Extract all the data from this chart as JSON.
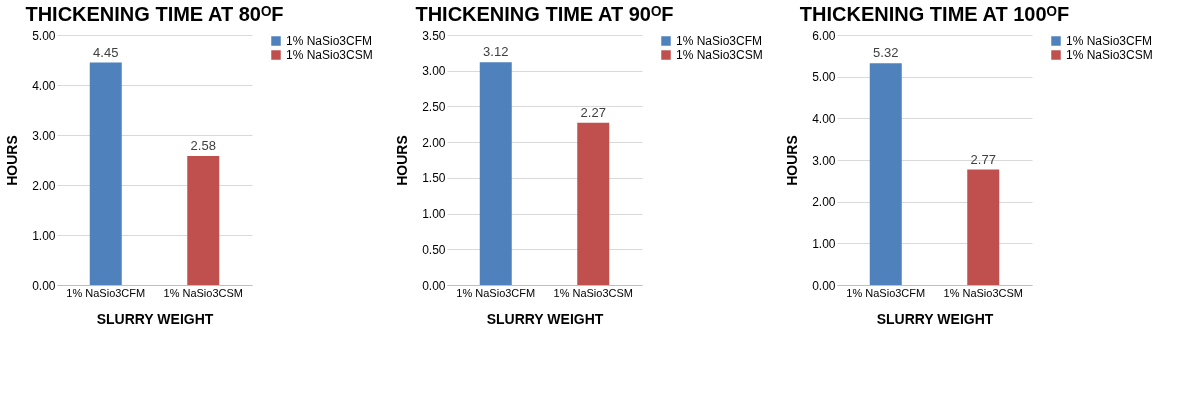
{
  "chart_data": [
    {
      "type": "bar",
      "title": "THICKENING TIME AT 80ᴼF",
      "xlabel": "SLURRY WEIGHT",
      "ylabel": "HOURS",
      "categories": [
        "1% NaSio3CFM",
        "1% NaSio3CSM"
      ],
      "series": [
        {
          "name": "1% NaSio3CFM",
          "color": "#4f81bd",
          "values": [
            4.45,
            null
          ]
        },
        {
          "name": "1% NaSio3CSM",
          "color": "#c0504d",
          "values": [
            null,
            2.58
          ]
        }
      ],
      "ylim": [
        0,
        5
      ],
      "yticks": [
        {
          "value": 0,
          "label": "0.00"
        },
        {
          "value": 1,
          "label": "1.00"
        },
        {
          "value": 2,
          "label": "2.00"
        },
        {
          "value": 3,
          "label": "3.00"
        },
        {
          "value": 4,
          "label": "4.00"
        },
        {
          "value": 5,
          "label": "5.00"
        }
      ],
      "grid": "y",
      "legend": "right",
      "data_labels": true
    },
    {
      "type": "bar",
      "title": "THICKENING TIME AT 90ᴼF",
      "xlabel": "SLURRY WEIGHT",
      "ylabel": "HOURS",
      "categories": [
        "1% NaSio3CFM",
        "1% NaSio3CSM"
      ],
      "series": [
        {
          "name": "1% NaSio3CFM",
          "color": "#4f81bd",
          "values": [
            3.12,
            null
          ]
        },
        {
          "name": "1% NaSio3CSM",
          "color": "#c0504d",
          "values": [
            null,
            2.27
          ]
        }
      ],
      "ylim": [
        0,
        3.5
      ],
      "yticks": [
        {
          "value": 0,
          "label": "0.00"
        },
        {
          "value": 0.5,
          "label": "0.50"
        },
        {
          "value": 1,
          "label": "1.00"
        },
        {
          "value": 1.5,
          "label": "1.50"
        },
        {
          "value": 2,
          "label": "2.00"
        },
        {
          "value": 2.5,
          "label": "2.50"
        },
        {
          "value": 3,
          "label": "3.00"
        },
        {
          "value": 3.5,
          "label": "3.50"
        }
      ],
      "grid": "y",
      "legend": "right",
      "data_labels": true
    },
    {
      "type": "bar",
      "title": "THICKENING TIME AT 100ᴼF",
      "xlabel": "SLURRY WEIGHT",
      "ylabel": "HOURS",
      "categories": [
        "1% NaSio3CFM",
        "1% NaSio3CSM"
      ],
      "series": [
        {
          "name": "1% NaSio3CFM",
          "color": "#4f81bd",
          "values": [
            5.32,
            null
          ]
        },
        {
          "name": "1% NaSio3CSM",
          "color": "#c0504d",
          "values": [
            null,
            2.77
          ]
        }
      ],
      "ylim": [
        0,
        6
      ],
      "yticks": [
        {
          "value": 0,
          "label": "0.00"
        },
        {
          "value": 1,
          "label": "1.00"
        },
        {
          "value": 2,
          "label": "2.00"
        },
        {
          "value": 3,
          "label": "3.00"
        },
        {
          "value": 4,
          "label": "4.00"
        },
        {
          "value": 5,
          "label": "5.00"
        },
        {
          "value": 6,
          "label": "6.00"
        }
      ],
      "grid": "y",
      "legend": "right",
      "data_labels": true
    }
  ]
}
